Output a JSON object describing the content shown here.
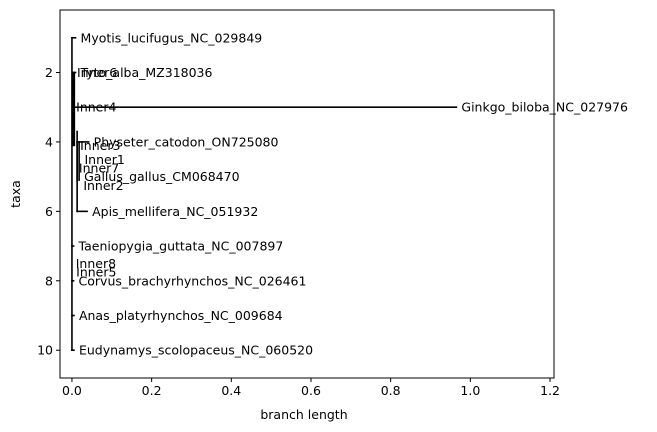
{
  "chart_data": {
    "type": "phylogenetic_tree",
    "xlabel": "branch length",
    "ylabel": "taxa",
    "xlim": [
      -0.03,
      1.21
    ],
    "ylim": [
      10.8,
      0.2
    ],
    "y_inverted": true,
    "xticks": [
      0.0,
      0.2,
      0.4,
      0.6,
      0.8,
      1.0,
      1.2
    ],
    "xtick_labels": [
      "0.0",
      "0.2",
      "0.4",
      "0.6",
      "0.8",
      "1.0",
      "1.2"
    ],
    "yticks": [
      2,
      4,
      6,
      8,
      10
    ],
    "ytick_labels": [
      "2",
      "4",
      "6",
      "8",
      "10"
    ],
    "line_color": "#000000",
    "leaves": [
      {
        "label": "Myotis_lucifugus_NC_029849",
        "x": 0.009,
        "y": 1
      },
      {
        "label": "Tyto_alba_MZ318036",
        "x": 0.009,
        "y": 2
      },
      {
        "label": "Ginkgo_biloba_NC_027976",
        "x": 0.965,
        "y": 3
      },
      {
        "label": "Physeter_catodon_ON725080",
        "x": 0.042,
        "y": 4
      },
      {
        "label": "Gallus_gallus_CM068470",
        "x": 0.018,
        "y": 5
      },
      {
        "label": "Apis_mellifera_NC_051932",
        "x": 0.038,
        "y": 6
      },
      {
        "label": "Taeniopygia_guttata_NC_007897",
        "x": 0.004,
        "y": 7
      },
      {
        "label": "Corvus_brachyrhynchos_NC_026461",
        "x": 0.004,
        "y": 8
      },
      {
        "label": "Anas_platyrhynchos_NC_009684",
        "x": 0.005,
        "y": 9
      },
      {
        "label": "Eudynamys_scolopaceus_NC_060520",
        "x": 0.005,
        "y": 10
      }
    ],
    "inner_nodes": [
      {
        "label": "Inner6",
        "x": 0.005,
        "y": 2.0
      },
      {
        "label": "Inner4",
        "x": 0.003,
        "y": 3.0
      },
      {
        "label": "Inner3",
        "x": 0.013,
        "y": 4.1
      },
      {
        "label": "Inner1",
        "x": 0.024,
        "y": 4.5
      },
      {
        "label": "Inner7",
        "x": 0.01,
        "y": 4.75
      },
      {
        "label": "Inner2",
        "x": 0.021,
        "y": 5.25
      },
      {
        "label": "Inner8",
        "x": 0.002,
        "y": 7.5
      },
      {
        "label": "Inner5",
        "x": 0.003,
        "y": 7.75
      }
    ],
    "edges": [
      {
        "x0": 0.0,
        "x1": 0.009,
        "y": 1
      },
      {
        "x0": 0.0,
        "x1": 0.0,
        "y0": 1,
        "y1": 10
      },
      {
        "x0": 0.003,
        "x1": 0.009,
        "y": 2
      },
      {
        "x0": 0.003,
        "x1": 0.003,
        "y0": 2,
        "y1": 4.1
      },
      {
        "x0": 0.006,
        "x1": 0.965,
        "y": 3
      },
      {
        "x0": 0.006,
        "x1": 0.006,
        "y0": 2,
        "y1": 4.1
      },
      {
        "x0": 0.013,
        "x1": 0.042,
        "y": 4
      },
      {
        "x0": 0.013,
        "x1": 0.013,
        "y0": 4,
        "y1": 5.1
      },
      {
        "x0": 0.018,
        "x1": 0.018,
        "y0": 4,
        "y1": 5.1
      },
      {
        "x0": 0.013,
        "x1": 0.038,
        "y": 6
      },
      {
        "x0": 0.013,
        "x1": 0.013,
        "y0": 3.7,
        "y1": 6
      },
      {
        "x0": 0.0,
        "x1": 0.004,
        "y": 7
      },
      {
        "x0": 0.0,
        "x1": 0.004,
        "y": 8
      },
      {
        "x0": 0.0,
        "x1": 0.005,
        "y": 9
      },
      {
        "x0": 0.0,
        "x1": 0.005,
        "y": 10
      }
    ]
  }
}
